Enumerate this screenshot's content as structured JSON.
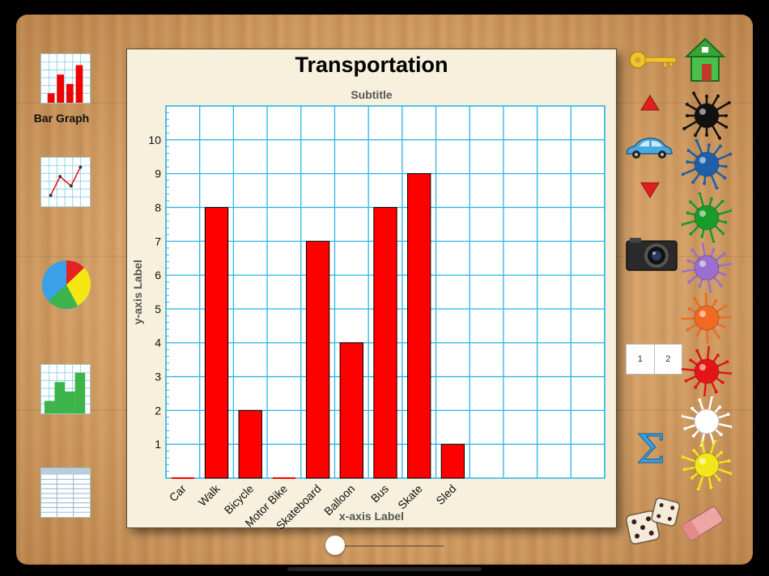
{
  "left_toolbar": {
    "bar_graph_label": "Bar Graph"
  },
  "chart_data": {
    "type": "bar",
    "title": "Transportation",
    "subtitle": "Subtitle",
    "xlabel": "x-axis Label",
    "ylabel": "y-axis Label",
    "categories": [
      "Car",
      "Walk",
      "Bicycle",
      "Motor Bike",
      "Skateboard",
      "Balloon",
      "Bus",
      "Skate",
      "Sled"
    ],
    "values": [
      0,
      8,
      2,
      0,
      7,
      4,
      8,
      9,
      1
    ],
    "ylim": [
      0,
      11
    ],
    "yticks": [
      1,
      2,
      3,
      4,
      5,
      6,
      7,
      8,
      9,
      10
    ],
    "num_columns": 13,
    "grid": true,
    "bar_color": "#ff0000",
    "grid_color": "#2bb4e6"
  },
  "page_toggle": {
    "page1": "1",
    "page2": "2"
  },
  "icons": {
    "key": "key-icon",
    "home": "home-icon",
    "up": "arrow-up-icon",
    "down": "arrow-down-icon",
    "car": "car-icon",
    "camera": "camera-icon",
    "sigma": "sigma-icon",
    "dice": "dice-icon",
    "eraser": "eraser-icon"
  },
  "paint_colors": [
    "#111111",
    "#1d5fa8",
    "#1a9a2a",
    "#9a6fd0",
    "#f26a22",
    "#e31515",
    "#ffffff",
    "#f2e51a"
  ],
  "slider": {
    "value": 0
  }
}
